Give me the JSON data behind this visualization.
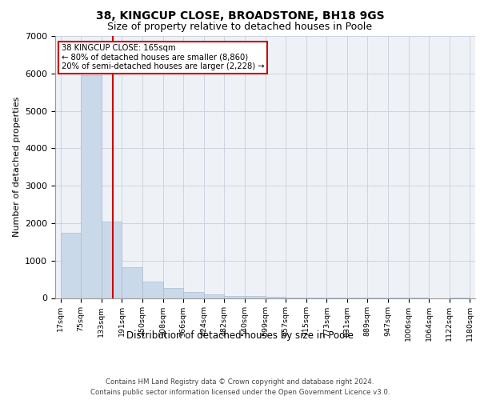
{
  "title1": "38, KINGCUP CLOSE, BROADSTONE, BH18 9GS",
  "title2": "Size of property relative to detached houses in Poole",
  "xlabel": "Distribution of detached houses by size in Poole",
  "ylabel": "Number of detached properties",
  "footer1": "Contains HM Land Registry data © Crown copyright and database right 2024.",
  "footer2": "Contains public sector information licensed under the Open Government Licence v3.0.",
  "annotation_line1": "38 KINGCUP CLOSE: 165sqm",
  "annotation_line2": "← 80% of detached houses are smaller (8,860)",
  "annotation_line3": "20% of semi-detached houses are larger (2,228) →",
  "property_size": 165,
  "bar_color": "#c9d9ea",
  "bar_edge_color": "#a8bdd0",
  "redline_color": "#cc0000",
  "grid_color": "#c8d0dc",
  "background_color": "#eef2f7",
  "bins": [
    17,
    75,
    133,
    191,
    250,
    308,
    366,
    424,
    482,
    540,
    599,
    657,
    715,
    773,
    831,
    889,
    947,
    1006,
    1064,
    1122,
    1180
  ],
  "counts": [
    1750,
    5950,
    2050,
    820,
    430,
    270,
    155,
    90,
    60,
    45,
    30,
    20,
    15,
    5,
    3,
    2,
    1,
    1,
    0,
    1
  ],
  "ylim": [
    0,
    7000
  ],
  "yticks": [
    0,
    1000,
    2000,
    3000,
    4000,
    5000,
    6000,
    7000
  ],
  "tick_labels": [
    "17sqm",
    "75sqm",
    "133sqm",
    "191sqm",
    "250sqm",
    "308sqm",
    "366sqm",
    "424sqm",
    "482sqm",
    "540sqm",
    "599sqm",
    "657sqm",
    "715sqm",
    "773sqm",
    "831sqm",
    "889sqm",
    "947sqm",
    "1006sqm",
    "1064sqm",
    "1122sqm",
    "1180sqm"
  ]
}
